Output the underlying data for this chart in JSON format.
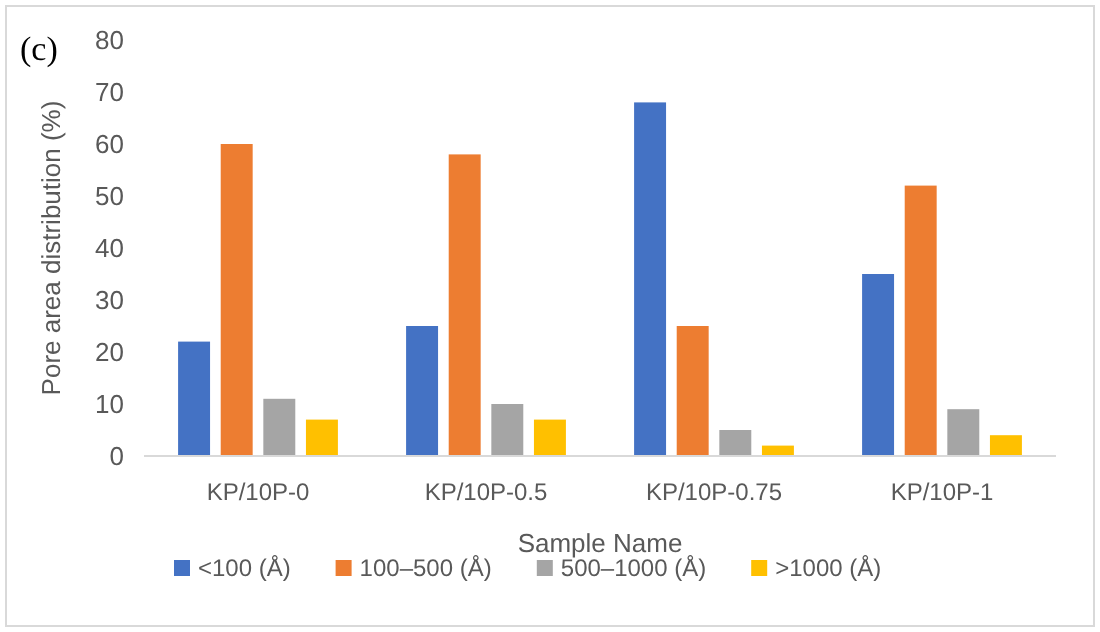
{
  "chart_data": {
    "type": "bar",
    "ylabel": "Pore area distribution (%)",
    "xlabel": "Sample Name",
    "annotations": [
      "(c)"
    ],
    "categories": [
      "KP/10P-0",
      "KP/10P-0.5",
      "KP/10P-0.75",
      "KP/10P-1"
    ],
    "series": [
      {
        "name": "<100 (Å)",
        "color": "#4472c4",
        "values": [
          22,
          25,
          68,
          35
        ]
      },
      {
        "name": "100–500 (Å)",
        "color": "#ed7d31",
        "values": [
          60,
          58,
          25,
          52
        ]
      },
      {
        "name": "500–1000 (Å)",
        "color": "#a5a5a5",
        "values": [
          11,
          10,
          5,
          9
        ]
      },
      {
        "name": ">1000 (Å)",
        "color": "#ffc000",
        "values": [
          7,
          7,
          2,
          4
        ]
      }
    ],
    "ylim": [
      0,
      80
    ],
    "yticks": [
      0,
      10,
      20,
      30,
      40,
      50,
      60,
      70,
      80
    ],
    "grid": false,
    "legend": "bottom"
  }
}
